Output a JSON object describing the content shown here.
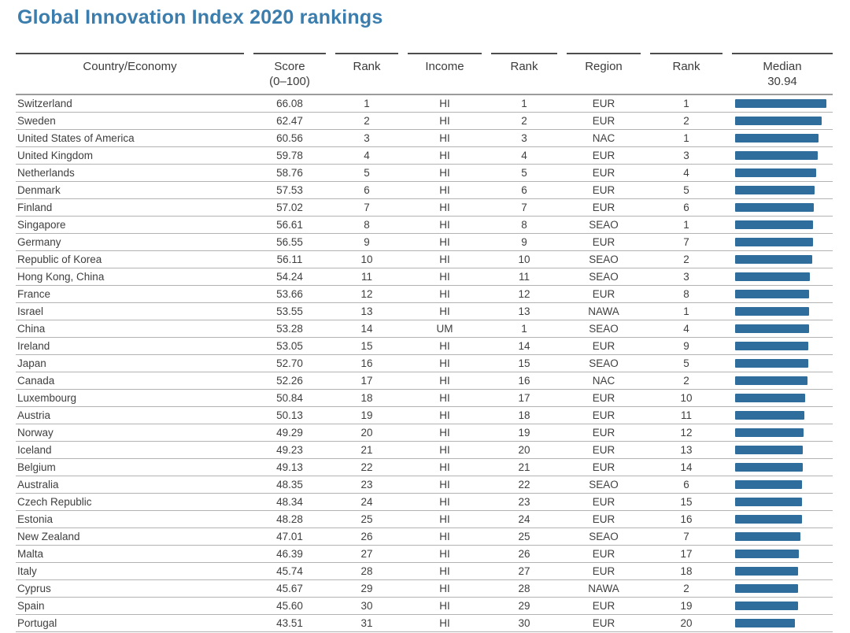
{
  "title": "Global Innovation Index 2020 rankings",
  "colors": {
    "accent": "#3b7dad",
    "bar": "#2f6d9d",
    "header_rule": "#4d4d4d",
    "row_divider": "#b3b3b3"
  },
  "chart_data": {
    "type": "table",
    "title": "Global Innovation Index 2020 rankings",
    "legend_note": "horizontal score bars rendered in Median column, proportional to Score (0-100)",
    "median_value": "30.94",
    "bar_scale": {
      "min": 0,
      "full_bar_score": 66.08
    },
    "columns": [
      {
        "label": "Country/Economy"
      },
      {
        "label": "Score",
        "sublabel": "(0–100)"
      },
      {
        "label": "Rank"
      },
      {
        "label": "Income"
      },
      {
        "label": "Rank"
      },
      {
        "label": "Region"
      },
      {
        "label": "Rank"
      },
      {
        "label": "Median",
        "sublabel": "30.94"
      }
    ],
    "rows": [
      {
        "country": "Switzerland",
        "score": "66.08",
        "rank": "1",
        "income": "HI",
        "income_rank": "1",
        "region": "EUR",
        "region_rank": "1"
      },
      {
        "country": "Sweden",
        "score": "62.47",
        "rank": "2",
        "income": "HI",
        "income_rank": "2",
        "region": "EUR",
        "region_rank": "2"
      },
      {
        "country": "United States of America",
        "score": "60.56",
        "rank": "3",
        "income": "HI",
        "income_rank": "3",
        "region": "NAC",
        "region_rank": "1"
      },
      {
        "country": "United Kingdom",
        "score": "59.78",
        "rank": "4",
        "income": "HI",
        "income_rank": "4",
        "region": "EUR",
        "region_rank": "3"
      },
      {
        "country": "Netherlands",
        "score": "58.76",
        "rank": "5",
        "income": "HI",
        "income_rank": "5",
        "region": "EUR",
        "region_rank": "4"
      },
      {
        "country": "Denmark",
        "score": "57.53",
        "rank": "6",
        "income": "HI",
        "income_rank": "6",
        "region": "EUR",
        "region_rank": "5"
      },
      {
        "country": "Finland",
        "score": "57.02",
        "rank": "7",
        "income": "HI",
        "income_rank": "7",
        "region": "EUR",
        "region_rank": "6"
      },
      {
        "country": "Singapore",
        "score": "56.61",
        "rank": "8",
        "income": "HI",
        "income_rank": "8",
        "region": "SEAO",
        "region_rank": "1"
      },
      {
        "country": "Germany",
        "score": "56.55",
        "rank": "9",
        "income": "HI",
        "income_rank": "9",
        "region": "EUR",
        "region_rank": "7"
      },
      {
        "country": "Republic of Korea",
        "score": "56.11",
        "rank": "10",
        "income": "HI",
        "income_rank": "10",
        "region": "SEAO",
        "region_rank": "2"
      },
      {
        "country": "Hong Kong, China",
        "score": "54.24",
        "rank": "11",
        "income": "HI",
        "income_rank": "11",
        "region": "SEAO",
        "region_rank": "3"
      },
      {
        "country": "France",
        "score": "53.66",
        "rank": "12",
        "income": "HI",
        "income_rank": "12",
        "region": "EUR",
        "region_rank": "8"
      },
      {
        "country": "Israel",
        "score": "53.55",
        "rank": "13",
        "income": "HI",
        "income_rank": "13",
        "region": "NAWA",
        "region_rank": "1"
      },
      {
        "country": "China",
        "score": "53.28",
        "rank": "14",
        "income": "UM",
        "income_rank": "1",
        "region": "SEAO",
        "region_rank": "4"
      },
      {
        "country": "Ireland",
        "score": "53.05",
        "rank": "15",
        "income": "HI",
        "income_rank": "14",
        "region": "EUR",
        "region_rank": "9"
      },
      {
        "country": "Japan",
        "score": "52.70",
        "rank": "16",
        "income": "HI",
        "income_rank": "15",
        "region": "SEAO",
        "region_rank": "5"
      },
      {
        "country": "Canada",
        "score": "52.26",
        "rank": "17",
        "income": "HI",
        "income_rank": "16",
        "region": "NAC",
        "region_rank": "2"
      },
      {
        "country": "Luxembourg",
        "score": "50.84",
        "rank": "18",
        "income": "HI",
        "income_rank": "17",
        "region": "EUR",
        "region_rank": "10"
      },
      {
        "country": "Austria",
        "score": "50.13",
        "rank": "19",
        "income": "HI",
        "income_rank": "18",
        "region": "EUR",
        "region_rank": "11"
      },
      {
        "country": "Norway",
        "score": "49.29",
        "rank": "20",
        "income": "HI",
        "income_rank": "19",
        "region": "EUR",
        "region_rank": "12"
      },
      {
        "country": "Iceland",
        "score": "49.23",
        "rank": "21",
        "income": "HI",
        "income_rank": "20",
        "region": "EUR",
        "region_rank": "13"
      },
      {
        "country": "Belgium",
        "score": "49.13",
        "rank": "22",
        "income": "HI",
        "income_rank": "21",
        "region": "EUR",
        "region_rank": "14"
      },
      {
        "country": "Australia",
        "score": "48.35",
        "rank": "23",
        "income": "HI",
        "income_rank": "22",
        "region": "SEAO",
        "region_rank": "6"
      },
      {
        "country": "Czech Republic",
        "score": "48.34",
        "rank": "24",
        "income": "HI",
        "income_rank": "23",
        "region": "EUR",
        "region_rank": "15"
      },
      {
        "country": "Estonia",
        "score": "48.28",
        "rank": "25",
        "income": "HI",
        "income_rank": "24",
        "region": "EUR",
        "region_rank": "16"
      },
      {
        "country": "New Zealand",
        "score": "47.01",
        "rank": "26",
        "income": "HI",
        "income_rank": "25",
        "region": "SEAO",
        "region_rank": "7"
      },
      {
        "country": "Malta",
        "score": "46.39",
        "rank": "27",
        "income": "HI",
        "income_rank": "26",
        "region": "EUR",
        "region_rank": "17"
      },
      {
        "country": "Italy",
        "score": "45.74",
        "rank": "28",
        "income": "HI",
        "income_rank": "27",
        "region": "EUR",
        "region_rank": "18"
      },
      {
        "country": "Cyprus",
        "score": "45.67",
        "rank": "29",
        "income": "HI",
        "income_rank": "28",
        "region": "NAWA",
        "region_rank": "2"
      },
      {
        "country": "Spain",
        "score": "45.60",
        "rank": "30",
        "income": "HI",
        "income_rank": "29",
        "region": "EUR",
        "region_rank": "19"
      },
      {
        "country": "Portugal",
        "score": "43.51",
        "rank": "31",
        "income": "HI",
        "income_rank": "30",
        "region": "EUR",
        "region_rank": "20"
      }
    ]
  }
}
